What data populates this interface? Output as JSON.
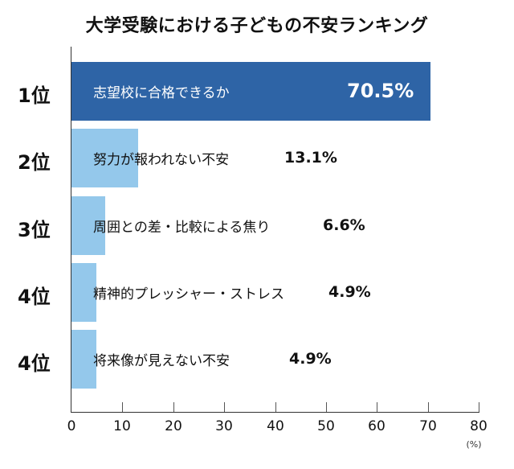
{
  "title": "大学受験における子どもの不安ランキング",
  "colors": {
    "top_bar": "#2E64A6",
    "other_bars": "#94C8EB",
    "axis": "#333333",
    "text_dark": "#111111",
    "text_light": "#FFFFFF"
  },
  "axis": {
    "ticks": [
      "0",
      "10",
      "20",
      "30",
      "40",
      "50",
      "60",
      "70",
      "80"
    ],
    "unit": "(%)"
  },
  "rows": [
    {
      "rank": "1位",
      "label": "志望校に合格できるか",
      "value_text": "70.5%"
    },
    {
      "rank": "2位",
      "label": "努力が報われない不安",
      "value_text": "13.1%"
    },
    {
      "rank": "3位",
      "label": "周囲との差・比較による焦り",
      "value_text": "6.6%"
    },
    {
      "rank": "4位",
      "label": "精神的プレッシャー・ストレス",
      "value_text": "4.9%"
    },
    {
      "rank": "4位",
      "label": "将来像が見えない不安",
      "value_text": "4.9%"
    }
  ],
  "chart_data": {
    "type": "bar",
    "orientation": "horizontal",
    "title": "大学受験における子どもの不安ランキング",
    "categories": [
      "志望校に合格できるか",
      "努力が報われない不安",
      "周囲との差・比較による焦り",
      "精神的プレッシャー・ストレス",
      "将来像が見えない不安"
    ],
    "ranks": [
      "1位",
      "2位",
      "3位",
      "4位",
      "4位"
    ],
    "values": [
      70.5,
      13.1,
      6.6,
      4.9,
      4.9
    ],
    "xlabel": "(%)",
    "ylabel": "",
    "xlim": [
      0,
      80
    ],
    "xticks": [
      0,
      10,
      20,
      30,
      40,
      50,
      60,
      70,
      80
    ],
    "grid": false,
    "legend": null,
    "data_labels": true,
    "bar_colors": [
      "#2E64A6",
      "#94C8EB",
      "#94C8EB",
      "#94C8EB",
      "#94C8EB"
    ]
  }
}
